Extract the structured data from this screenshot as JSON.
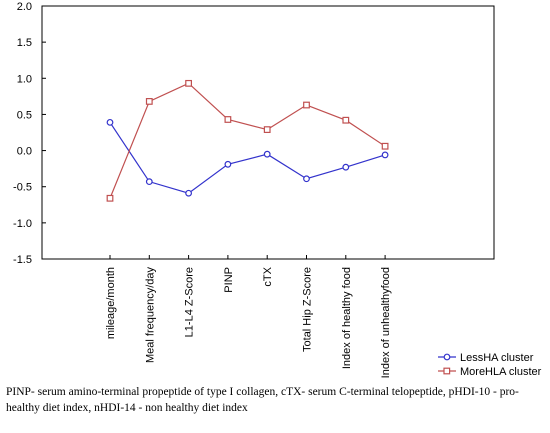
{
  "chart_data": {
    "type": "line",
    "categories": [
      "mileage/month",
      "Meal frequency/day",
      "L1-L4 Z-Score",
      "PINP",
      "cTX",
      "Total Hip  Z-Score",
      "Index of healthy food",
      "Index of unhealthyfood"
    ],
    "series": [
      {
        "name": "LessHA cluster",
        "values": [
          0.39,
          -0.43,
          -0.59,
          -0.19,
          -0.05,
          -0.39,
          -0.23,
          -0.06
        ],
        "color": "#3333cc",
        "marker": "circle"
      },
      {
        "name": "MoreHLA cluster",
        "values": [
          -0.66,
          0.68,
          0.93,
          0.43,
          0.29,
          0.63,
          0.42,
          0.06
        ],
        "color": "#c05050",
        "marker": "square"
      }
    ],
    "yticks": [
      "2.0",
      "1.5",
      "1.0",
      "0.5",
      "0.0",
      "-0.5",
      "-1.0",
      "-1.5"
    ],
    "ylim": [
      -1.5,
      2.0
    ],
    "legend_position": "bottom-right",
    "grid": false
  },
  "caption": "PINP- serum amino-terminal propeptide of type I collagen, cTX- serum C-terminal telopeptide, pHDI-10 - pro-healthy diet index, nHDI-14 - non healthy diet index"
}
